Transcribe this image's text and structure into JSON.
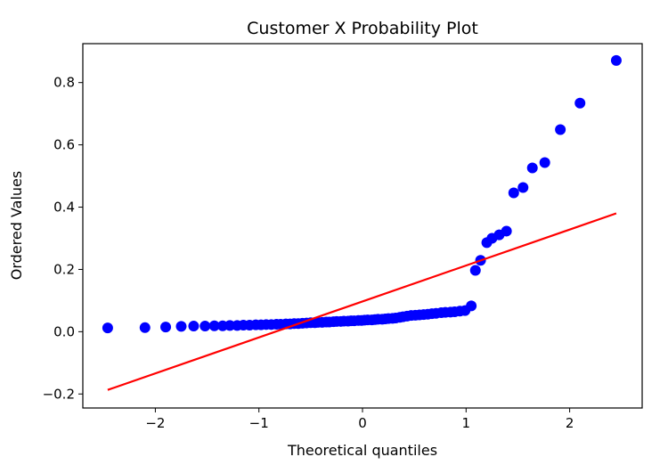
{
  "chart_data": {
    "type": "scatter",
    "title": "Customer X Probability Plot",
    "xlabel": "Theoretical quantiles",
    "ylabel": "Ordered Values",
    "xlim": [
      -2.7,
      2.7
    ],
    "ylim": [
      -0.245,
      0.925
    ],
    "xticks": [
      -2,
      -1,
      0,
      1,
      2
    ],
    "xtick_labels": [
      "−2",
      "−1",
      "0",
      "1",
      "2"
    ],
    "yticks": [
      -0.2,
      0.0,
      0.2,
      0.4,
      0.6,
      0.8
    ],
    "ytick_labels": [
      "−0.2",
      "0.0",
      "0.2",
      "0.4",
      "0.6",
      "0.8"
    ],
    "grid": false,
    "marker_color": "#0000ff",
    "line_color": "#ff0000",
    "points": {
      "x": [
        -2.46,
        -2.1,
        -1.9,
        -1.75,
        -1.63,
        -1.52,
        -1.43,
        -1.35,
        -1.28,
        -1.21,
        -1.15,
        -1.09,
        -1.03,
        -0.98,
        -0.93,
        -0.88,
        -0.83,
        -0.79,
        -0.74,
        -0.7,
        -0.66,
        -0.62,
        -0.58,
        -0.54,
        -0.5,
        -0.46,
        -0.43,
        -0.39,
        -0.35,
        -0.32,
        -0.28,
        -0.25,
        -0.21,
        -0.18,
        -0.14,
        -0.11,
        -0.08,
        -0.04,
        -0.01,
        0.02,
        0.05,
        0.09,
        0.12,
        0.15,
        0.19,
        0.22,
        0.25,
        0.29,
        0.32,
        0.36,
        0.39,
        0.43,
        0.47,
        0.51,
        0.55,
        0.59,
        0.63,
        0.67,
        0.71,
        0.76,
        0.8,
        0.85,
        0.89,
        0.94,
        0.99,
        1.05,
        1.09,
        1.14,
        1.2,
        1.25,
        1.32,
        1.39,
        1.46,
        1.55,
        1.64,
        1.76,
        1.91,
        2.1,
        2.45
      ],
      "y": [
        0.012,
        0.013,
        0.015,
        0.017,
        0.018,
        0.018,
        0.019,
        0.019,
        0.02,
        0.02,
        0.021,
        0.021,
        0.022,
        0.022,
        0.023,
        0.023,
        0.024,
        0.024,
        0.025,
        0.025,
        0.026,
        0.026,
        0.027,
        0.028,
        0.029,
        0.029,
        0.03,
        0.03,
        0.031,
        0.031,
        0.032,
        0.033,
        0.033,
        0.034,
        0.034,
        0.035,
        0.035,
        0.036,
        0.036,
        0.037,
        0.038,
        0.038,
        0.039,
        0.04,
        0.04,
        0.041,
        0.042,
        0.043,
        0.044,
        0.046,
        0.048,
        0.05,
        0.052,
        0.053,
        0.054,
        0.055,
        0.056,
        0.058,
        0.059,
        0.061,
        0.062,
        0.063,
        0.064,
        0.066,
        0.068,
        0.083,
        0.197,
        0.229,
        0.286,
        0.3,
        0.311,
        0.323,
        0.446,
        0.463,
        0.526,
        0.543,
        0.649,
        0.734,
        0.871
      ]
    },
    "fit_line": {
      "x": [
        -2.46,
        2.45
      ],
      "y": [
        -0.187,
        0.38
      ]
    }
  }
}
